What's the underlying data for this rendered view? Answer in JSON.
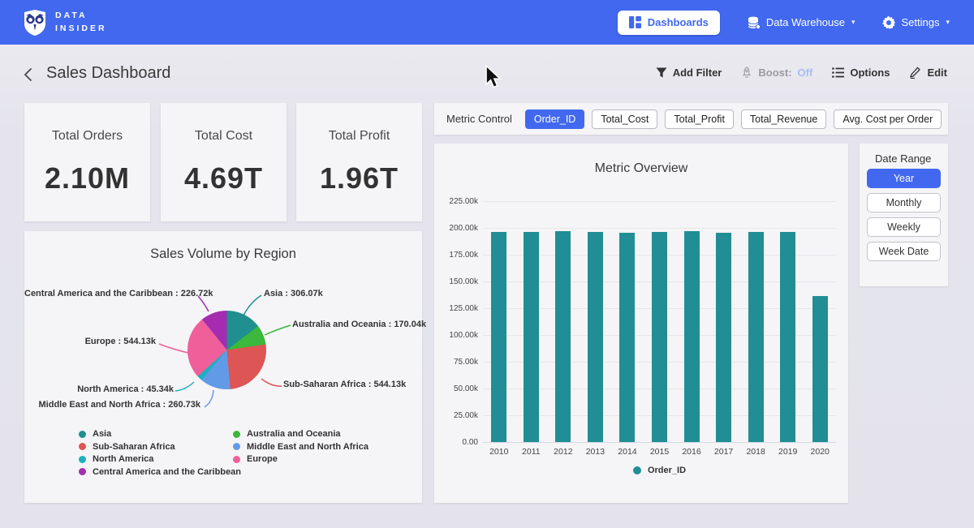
{
  "navbar": {
    "brand_line1": "DATA",
    "brand_line2": "INSIDER",
    "dashboards_label": "Dashboards",
    "data_warehouse_label": "Data Warehouse",
    "settings_label": "Settings"
  },
  "header": {
    "title": "Sales Dashboard",
    "add_filter_label": "Add Filter",
    "boost_label": "Boost:",
    "boost_value": "Off",
    "options_label": "Options",
    "edit_label": "Edit"
  },
  "colors": {
    "accent_blue": "#4168ee",
    "bar_teal": "#208e94",
    "boost_off": "#a9bdf0"
  },
  "kpis": [
    {
      "label": "Total Orders",
      "value": "2.10M"
    },
    {
      "label": "Total Cost",
      "value": "4.69T"
    },
    {
      "label": "Total Profit",
      "value": "1.96T"
    }
  ],
  "metric_control": {
    "label": "Metric Control",
    "options": [
      {
        "label": "Order_ID",
        "selected": true
      },
      {
        "label": "Total_Cost",
        "selected": false
      },
      {
        "label": "Total_Profit",
        "selected": false
      },
      {
        "label": "Total_Revenue",
        "selected": false
      },
      {
        "label": "Avg. Cost per Order",
        "selected": false
      }
    ]
  },
  "date_range": {
    "label": "Date Range",
    "options": [
      {
        "label": "Year",
        "selected": true
      },
      {
        "label": "Monthly",
        "selected": false
      },
      {
        "label": "Weekly",
        "selected": false
      },
      {
        "label": "Week Date",
        "selected": false
      }
    ]
  },
  "chart_data": [
    {
      "type": "bar",
      "title": "Metric Overview",
      "categories": [
        "2010",
        "2011",
        "2012",
        "2013",
        "2014",
        "2015",
        "2016",
        "2017",
        "2018",
        "2019",
        "2020"
      ],
      "series": [
        {
          "name": "Order_ID",
          "color": "#208e94",
          "values": [
            196300,
            196100,
            196900,
            195900,
            195800,
            195900,
            197000,
            195800,
            195900,
            196000,
            136400
          ]
        }
      ],
      "ylim": [
        0,
        225000
      ],
      "ytick_labels": [
        "0.00",
        "25.00k",
        "50.00k",
        "75.00k",
        "100.00k",
        "125.00k",
        "150.00k",
        "175.00k",
        "200.00k",
        "225.00k"
      ],
      "grid": true,
      "legend_position": "bottom"
    },
    {
      "type": "pie",
      "title": "Sales Volume by Region",
      "slices": [
        {
          "label": "Asia",
          "value": 306070,
          "value_label": "306.07k",
          "color": "#1f8f8f"
        },
        {
          "label": "Australia and Oceania",
          "value": 170040,
          "value_label": "170.04k",
          "color": "#3cb83c"
        },
        {
          "label": "Sub-Saharan Africa",
          "value": 544130,
          "value_label": "544.13k",
          "color": "#dd5555"
        },
        {
          "label": "Middle East and North Africa",
          "value": 260730,
          "value_label": "260.73k",
          "color": "#639ae8"
        },
        {
          "label": "North America",
          "value": 45340,
          "value_label": "45.34k",
          "color": "#1db0c0"
        },
        {
          "label": "Europe",
          "value": 544130,
          "value_label": "544.13k",
          "color": "#ef5f9a"
        },
        {
          "label": "Central America and the Caribbean",
          "value": 226720,
          "value_label": "226.72k",
          "color": "#a42cb0"
        }
      ],
      "legend_columns": [
        [
          "Asia",
          "Sub-Saharan Africa",
          "North America",
          "Central America and the Caribbean"
        ],
        [
          "Australia and Oceania",
          "Middle East and North Africa",
          "Europe"
        ]
      ]
    }
  ]
}
